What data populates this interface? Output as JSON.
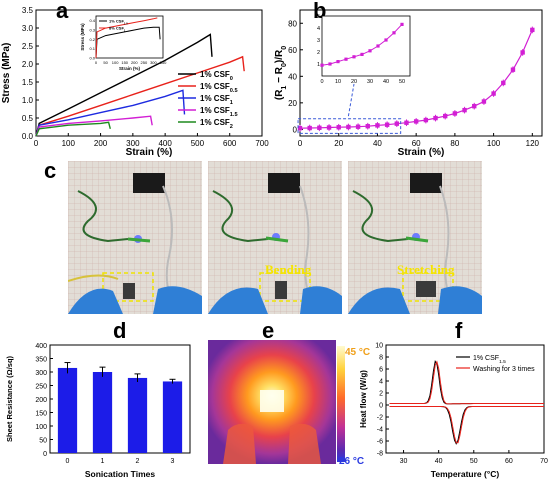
{
  "panels": {
    "a": "a",
    "b": "b",
    "c": "c",
    "d": "d",
    "e": "e",
    "f": "f"
  },
  "chart_data": [
    {
      "id": "a",
      "type": "line",
      "xlabel": "Strain (%)",
      "ylabel": "Stress (MPa)",
      "xlim": [
        0,
        700
      ],
      "ylim": [
        0,
        3.5
      ],
      "xticks": [
        0,
        100,
        200,
        300,
        400,
        500,
        600,
        700
      ],
      "yticks": [
        0.0,
        0.5,
        1.0,
        1.5,
        2.0,
        2.5,
        3.0,
        3.5
      ],
      "legend_position": "right",
      "series": [
        {
          "name": "1% CSF",
          "sub": "0",
          "color": "#000000",
          "x": [
            0,
            10,
            100,
            200,
            300,
            400,
            500,
            540,
            545
          ],
          "y": [
            0,
            0.35,
            0.75,
            1.2,
            1.65,
            2.1,
            2.6,
            2.82,
            2.2
          ]
        },
        {
          "name": "1% CSF",
          "sub": "0.5",
          "color": "#e8221b",
          "x": [
            0,
            10,
            100,
            200,
            300,
            400,
            500,
            600,
            640,
            645
          ],
          "y": [
            0,
            0.3,
            0.55,
            0.85,
            1.15,
            1.45,
            1.75,
            2.05,
            2.2,
            1.8
          ]
        },
        {
          "name": "1% CSF",
          "sub": "1",
          "color": "#1e2be0",
          "x": [
            0,
            10,
            100,
            200,
            300,
            400,
            455,
            460
          ],
          "y": [
            0,
            0.3,
            0.45,
            0.65,
            0.85,
            1.1,
            1.27,
            0.6
          ]
        },
        {
          "name": "1% CSF",
          "sub": "1.5",
          "color": "#d21fd4",
          "x": [
            0,
            10,
            100,
            200,
            300,
            355,
            360
          ],
          "y": [
            0,
            0.25,
            0.35,
            0.42,
            0.5,
            0.55,
            0.3
          ]
        },
        {
          "name": "1% CSF",
          "sub": "2",
          "color": "#1e8a1e",
          "x": [
            0,
            10,
            100,
            200,
            225,
            230
          ],
          "y": [
            0,
            0.2,
            0.3,
            0.35,
            0.38,
            0.2
          ]
        }
      ],
      "inset": {
        "xlabel": "Strain (%)",
        "ylabel": "Stress (MPa)",
        "xlim": [
          0,
          350
        ],
        "ylim": [
          0,
          0.45
        ],
        "xticks": [
          0,
          50,
          100,
          150,
          200,
          250,
          300,
          350
        ],
        "yticks": [
          0.0,
          0.1,
          0.2,
          0.3,
          0.4
        ],
        "series": [
          {
            "name": "1% CSF",
            "sub": "1.5",
            "color": "#000000",
            "x": [
              0,
              5,
              50,
              100,
              150,
              200,
              250,
              300,
              330,
              335
            ],
            "y": [
              0,
              0.2,
              0.24,
              0.26,
              0.28,
              0.3,
              0.32,
              0.33,
              0.33,
              0.2
            ]
          },
          {
            "name": "8% CSF",
            "sub": "1",
            "color": "#e8221b",
            "x": [
              0,
              5,
              50,
              100,
              150,
              200,
              250,
              300,
              320
            ],
            "y": [
              0,
              0.28,
              0.32,
              0.34,
              0.36,
              0.38,
              0.4,
              0.42,
              0.43
            ]
          }
        ]
      }
    },
    {
      "id": "b",
      "type": "scatter",
      "xlabel": "Strain (%)",
      "ylabel": "(R",
      "ylabel_parts": [
        "(R",
        "1",
        " − R",
        "0",
        ")/R",
        "0"
      ],
      "xlim": [
        0,
        125
      ],
      "ylim": [
        -5,
        90
      ],
      "xticks": [
        0,
        20,
        40,
        60,
        80,
        100,
        120
      ],
      "yticks": [
        0,
        20,
        40,
        60,
        80
      ],
      "color": "#d21fd4",
      "x": [
        0,
        5,
        10,
        15,
        20,
        25,
        30,
        35,
        40,
        45,
        50,
        55,
        60,
        65,
        70,
        75,
        80,
        85,
        90,
        95,
        100,
        105,
        110,
        115,
        120
      ],
      "y": [
        0.9,
        1.0,
        1.2,
        1.4,
        1.6,
        1.8,
        2.0,
        2.4,
        3.0,
        3.5,
        4.3,
        5.0,
        6.0,
        7.0,
        8.5,
        10.0,
        12.0,
        14.5,
        17.5,
        21.0,
        27.0,
        35.0,
        45.0,
        58.0,
        75.0
      ],
      "inset": {
        "xlim": [
          0,
          55
        ],
        "ylim": [
          0,
          5
        ],
        "xticks": [
          0,
          10,
          20,
          30,
          40,
          50
        ],
        "yticks": [
          1,
          2,
          3,
          4,
          5
        ],
        "x": [
          0,
          5,
          10,
          15,
          20,
          25,
          30,
          35,
          40,
          45,
          50
        ],
        "y": [
          0.9,
          1.0,
          1.2,
          1.4,
          1.6,
          1.8,
          2.1,
          2.5,
          3.0,
          3.6,
          4.3
        ]
      }
    },
    {
      "id": "d",
      "type": "bar",
      "xlabel": "Sonication Times",
      "ylabel": "Sheet Resistance (Ω/sq)",
      "categories": [
        "0",
        "1",
        "2",
        "3"
      ],
      "values": [
        315,
        300,
        278,
        265
      ],
      "errors": [
        20,
        18,
        15,
        8
      ],
      "ylim": [
        0,
        400
      ],
      "yticks": [
        0,
        50,
        100,
        150,
        200,
        250,
        300,
        350,
        400
      ],
      "color": "#1c1ce8"
    },
    {
      "id": "f",
      "type": "line",
      "xlabel": "Temperature (°C)",
      "ylabel": "Heat flow (W/g)",
      "xlim": [
        25,
        70
      ],
      "ylim": [
        -8,
        10
      ],
      "xticks": [
        30,
        40,
        50,
        60,
        70
      ],
      "yticks": [
        -8,
        -6,
        -4,
        -2,
        0,
        2,
        4,
        6,
        8,
        10
      ],
      "legend_position": "top-right",
      "series": [
        {
          "name": "1% CSF",
          "sub": "1.5",
          "color": "#000000"
        },
        {
          "name": "Washing for 3 times",
          "color": "#e8221b"
        }
      ]
    }
  ],
  "photos": {
    "labels": [
      "Bending",
      "Stretching"
    ]
  },
  "thermal": {
    "max_label": "45 °C",
    "min_label": "26 °C"
  }
}
